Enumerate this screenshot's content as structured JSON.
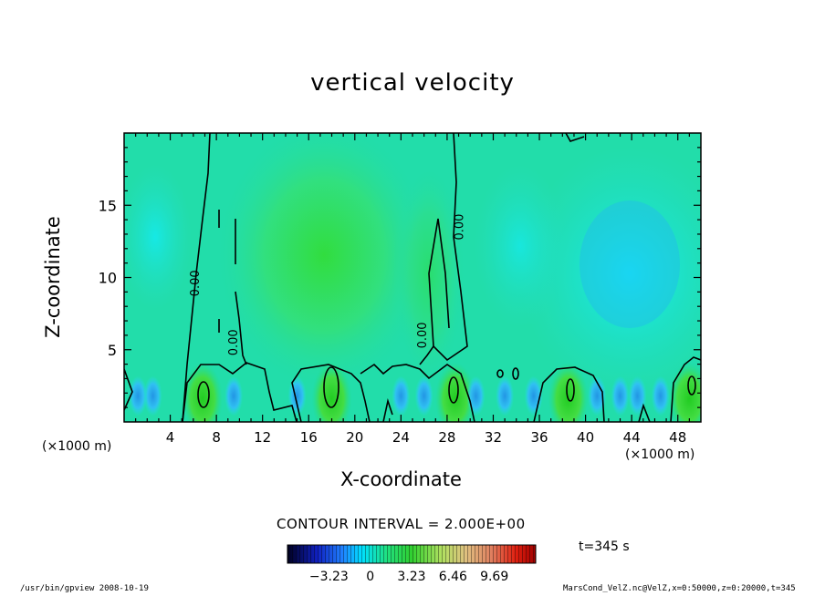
{
  "chart_data": {
    "type": "heatmap",
    "title": "vertical velocity",
    "xlabel": "X-coordinate",
    "ylabel": "Z-coordinate",
    "x_unit_left": "(×1000 m)",
    "x_unit_right": "(×1000 m)",
    "xlim": [
      0,
      50
    ],
    "ylim": [
      0,
      20
    ],
    "x_ticks": [
      "4",
      "8",
      "12",
      "16",
      "20",
      "24",
      "28",
      "32",
      "36",
      "40",
      "44",
      "48"
    ],
    "y_ticks": [
      "5",
      "10",
      "15"
    ],
    "x_tick_values": [
      4,
      8,
      12,
      16,
      20,
      24,
      28,
      32,
      36,
      40,
      44,
      48
    ],
    "y_tick_values": [
      5,
      10,
      15
    ],
    "contour_labels": [
      "0.00",
      "0.00",
      "0.00",
      "0.00"
    ],
    "contour_interval": "CONTOUR INTERVAL = 2.000E+00",
    "colorbar": {
      "range": [
        -6.46,
        12.92
      ],
      "tick_labels": [
        "−3.23",
        "0",
        "3.23",
        "6.46",
        "9.69"
      ],
      "tick_values": [
        -3.23,
        0,
        3.23,
        6.46,
        9.69
      ]
    },
    "time_label": "t=345 s",
    "grid": false,
    "updrafts_x": [
      6.8,
      18,
      28.7,
      38.5,
      49
    ],
    "weak_downdraft_region_x": [
      34,
      48
    ]
  },
  "footer": {
    "left": "/usr/bin/gpview  2008-10-19",
    "right": "MarsCond_VelZ.nc@VelZ,x=0:50000,z=0:20000,t=345"
  }
}
